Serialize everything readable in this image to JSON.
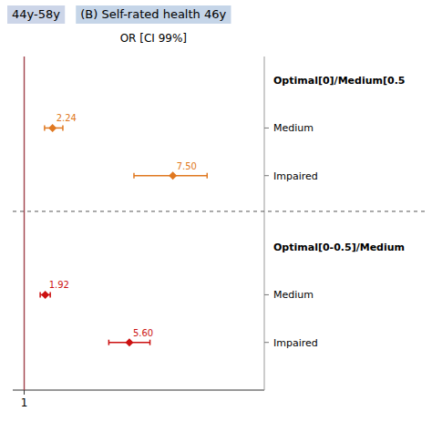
{
  "chart_data": {
    "type": "forest",
    "title": "(B) Self-rated health 46y",
    "subtitle": "OR [CI 99%]",
    "annotations": [
      "44y-58y"
    ],
    "series": [
      {
        "name": "Optimal[0]/Medium[0.5",
        "color": "#E07820",
        "marker": "diamond",
        "categories": [
          "Medium",
          "Impaired"
        ],
        "values": [
          2.24,
          7.5
        ],
        "error_low": [
          0.35,
          1.7
        ],
        "error_high": [
          0.45,
          1.5
        ],
        "value_labels": [
          "2.24",
          "7.50"
        ]
      },
      {
        "name": "Optimal[0-0.5]/Medium",
        "color": "#CC1111",
        "marker": "diamond",
        "categories": [
          "Medium",
          "Impaired"
        ],
        "values": [
          1.92,
          5.6
        ],
        "error_low": [
          0.22,
          0.9
        ],
        "error_high": [
          0.22,
          0.9
        ],
        "value_labels": [
          "1.92",
          "5.60"
        ]
      }
    ],
    "xlim": [
      0.5,
      11.5
    ],
    "xticks": [
      1
    ],
    "data_labels": true,
    "grid": false
  }
}
